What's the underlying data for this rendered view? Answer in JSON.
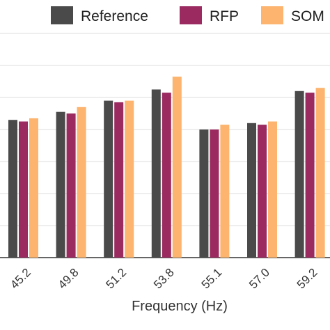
{
  "chart_data": {
    "type": "bar",
    "xlabel": "Frequency (Hz)",
    "ylabel": "",
    "categories": [
      "45.2",
      "49.8",
      "51.2",
      "53.8",
      "55.1",
      "57.0",
      "59.2"
    ],
    "series": [
      {
        "name": "Reference",
        "color": "#4a4a4a",
        "values": [
          0.86,
          0.91,
          0.98,
          1.05,
          0.8,
          0.84,
          1.04
        ]
      },
      {
        "name": "RFP",
        "color": "#9b2a60",
        "values": [
          0.85,
          0.9,
          0.97,
          1.03,
          0.8,
          0.83,
          1.03
        ]
      },
      {
        "name": "SOM",
        "color": "#fcb46e",
        "values": [
          0.87,
          0.94,
          0.98,
          1.13,
          0.83,
          0.85,
          1.06
        ]
      }
    ],
    "ylim": [
      0,
      1.4
    ],
    "grid": true,
    "legend_position": "top"
  }
}
